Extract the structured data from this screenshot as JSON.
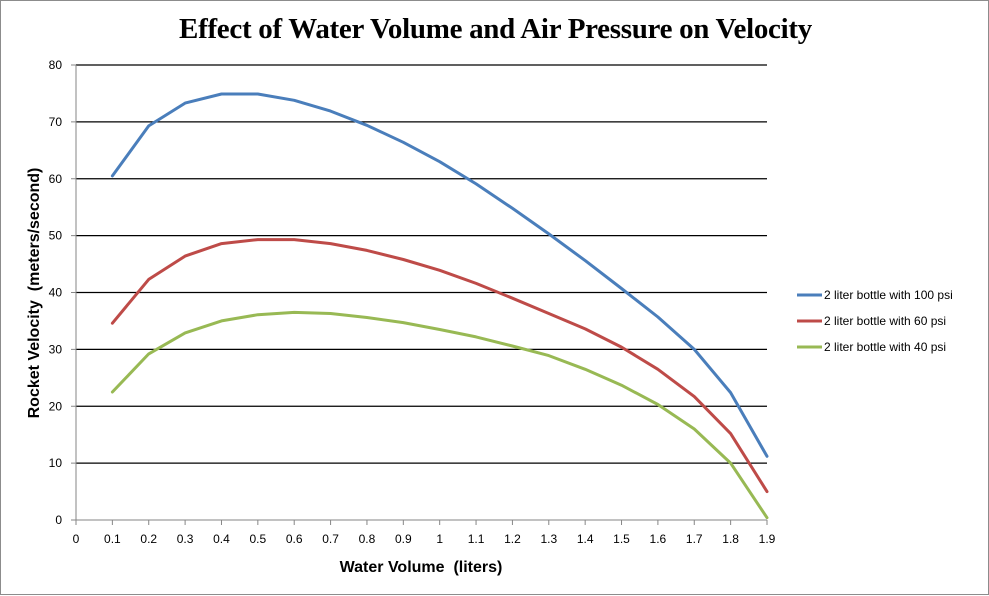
{
  "chart_data": {
    "type": "line",
    "title": "Effect of Water Volume and Air Pressure on Velocity",
    "xlabel": "Water Volume  (liters)",
    "ylabel": "Rocket Velocity  (meters/second)",
    "xlim": [
      0,
      1.9
    ],
    "ylim": [
      0,
      80
    ],
    "x_ticks": [
      "0",
      "0.1",
      "0.2",
      "0.3",
      "0.4",
      "0.5",
      "0.6",
      "0.7",
      "0.8",
      "0.9",
      "1",
      "1.1",
      "1.2",
      "1.3",
      "1.4",
      "1.5",
      "1.6",
      "1.7",
      "1.8",
      "1.9"
    ],
    "y_ticks": [
      "0",
      "10",
      "20",
      "30",
      "40",
      "50",
      "60",
      "70",
      "80"
    ],
    "grid": "horizontal major gridlines",
    "legend_position": "right",
    "x": [
      0.1,
      0.2,
      0.3,
      0.4,
      0.5,
      0.6,
      0.7,
      0.8,
      0.9,
      1.0,
      1.1,
      1.2,
      1.3,
      1.4,
      1.5,
      1.6,
      1.7,
      1.8,
      1.9
    ],
    "series": [
      {
        "name": "2 liter bottle with 100 psi",
        "color": "#4a7ebb",
        "values": [
          60.5,
          69.3,
          73.3,
          74.9,
          74.9,
          73.8,
          71.9,
          69.4,
          66.4,
          63.0,
          59.1,
          54.8,
          50.3,
          45.6,
          40.7,
          35.7,
          30.0,
          22.4,
          11.2
        ]
      },
      {
        "name": "2 liter bottle with 60 psi",
        "color": "#be4b48",
        "values": [
          34.6,
          42.3,
          46.4,
          48.6,
          49.3,
          49.3,
          48.6,
          47.4,
          45.8,
          43.9,
          41.6,
          39.0,
          36.3,
          33.6,
          30.4,
          26.5,
          21.7,
          15.2,
          5.0
        ]
      },
      {
        "name": "2 liter bottle with 40 psi",
        "color": "#98b954",
        "values": [
          22.5,
          29.2,
          32.9,
          35.0,
          36.1,
          36.5,
          36.3,
          35.6,
          34.7,
          33.5,
          32.2,
          30.6,
          28.9,
          26.5,
          23.7,
          20.3,
          16.0,
          10.0,
          0.4
        ]
      }
    ]
  }
}
